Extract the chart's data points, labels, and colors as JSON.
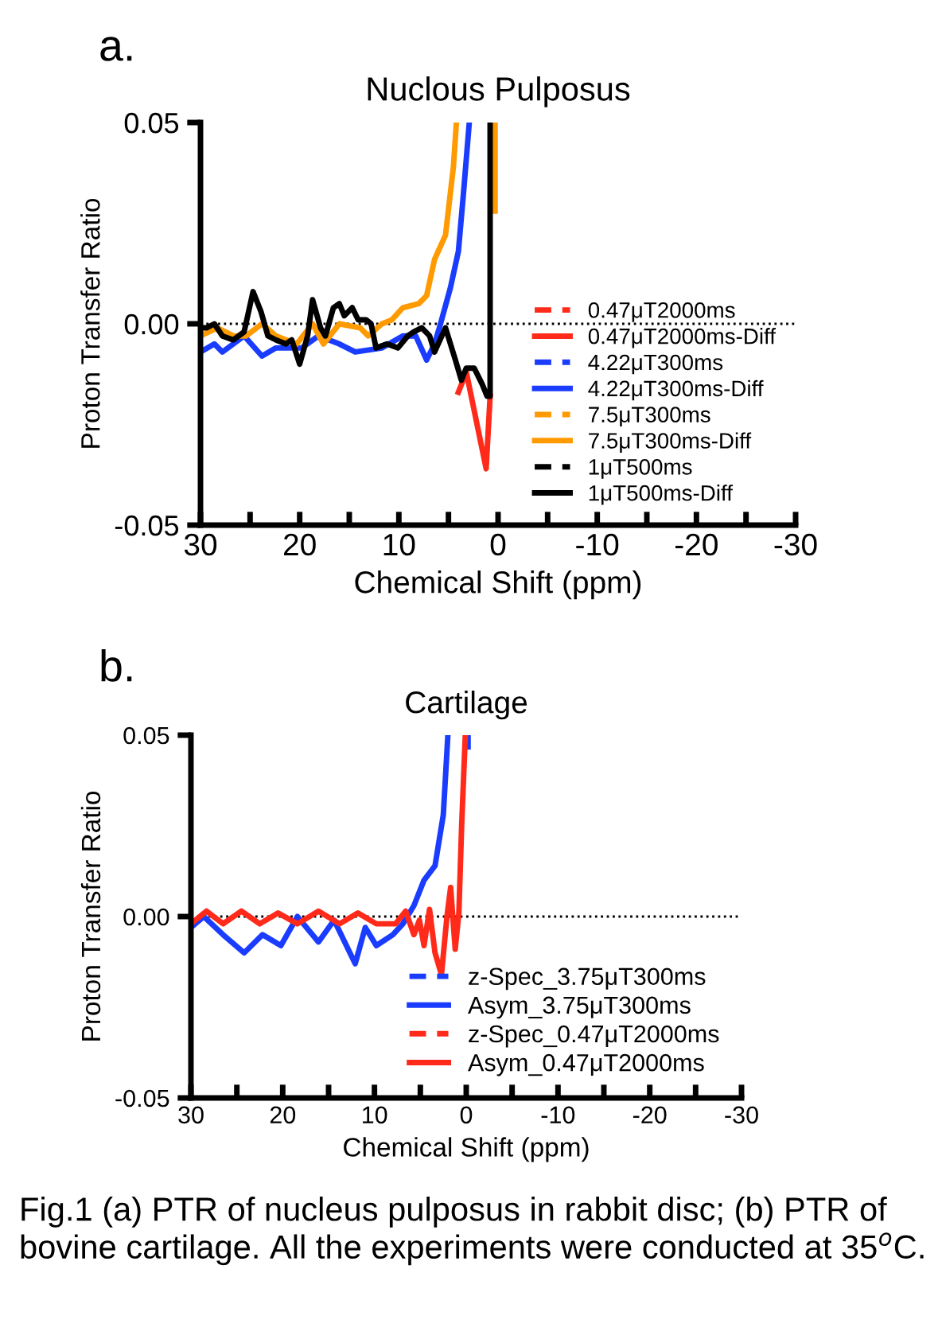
{
  "chart_data": [
    {
      "type": "line",
      "title": "Nuclous Pulposus",
      "xlabel": "Chemical Shift (ppm)",
      "ylabel": "Proton Transfer Ratio",
      "annotations": [
        "a."
      ],
      "xlim": [
        30,
        -30
      ],
      "xticks": [
        30,
        20,
        10,
        0,
        -10,
        -20,
        -30
      ],
      "ylim": [
        -0.05,
        0.05
      ],
      "yticks": [
        {
          "value": 0.05,
          "label": "0.05"
        },
        {
          "value": 0,
          "label": "0.00"
        },
        {
          "value": -0.05,
          "label": "-0.05"
        }
      ],
      "grid": false,
      "legend": "lower right",
      "marker": "none",
      "ref_lines": [
        {
          "axis": "y",
          "value": 0,
          "line_style": "dotted",
          "color": "#000000"
        }
      ],
      "series": [
        {
          "name": "0.47μT2000ms",
          "color": "#ff2a1a",
          "line_style": "dashed"
        },
        {
          "name": "0.47μT2000ms-Diff",
          "color": "#ff2a1a",
          "line_style": "solid",
          "x": [
            4.0,
            3.2,
            1.2,
            0.8
          ],
          "values": [
            -0.017,
            -0.012,
            -0.036,
            -0.018
          ]
        },
        {
          "name": "4.22μT300ms",
          "color": "#1a3cff",
          "line_style": "dashed"
        },
        {
          "name": "4.22μT300ms-Diff",
          "color": "#1a3cff",
          "line_style": "solid",
          "x": [
            30,
            28.6,
            27.8,
            25.6,
            23.8,
            22.4,
            19.8,
            18.1,
            16.0,
            14.4,
            11.7,
            9.6,
            8.3,
            7.2,
            6.4,
            5.8,
            4.8,
            4.0,
            3.5,
            2.9
          ],
          "values": [
            -0.007,
            -0.005,
            -0.007,
            -0.003,
            -0.008,
            -0.006,
            -0.006,
            -0.003,
            -0.005,
            -0.007,
            -0.006,
            -0.003,
            -0.003,
            -0.009,
            -0.005,
            0,
            0.009,
            0.018,
            0.032,
            0.05
          ]
        },
        {
          "name": "7.5μT300ms",
          "color": "#ff9a00",
          "line_style": "dashed"
        },
        {
          "name": "7.5μT300ms-Diff",
          "color": "#ff9a00",
          "line_style": "solid",
          "x": [
            30,
            28.3,
            26.7,
            25.4,
            23.8,
            22.4,
            20.3,
            18.7,
            17.6,
            16.0,
            13.9,
            13.1,
            11.7,
            10.7,
            9.6,
            8.0,
            7.2,
            6.4,
            5.3,
            4.5,
            4.2,
            2.0,
            0.3,
            0.3
          ],
          "values": [
            -0.003,
            -0.001,
            -0.003,
            -0.003,
            0,
            -0.003,
            -0.005,
            0,
            -0.005,
            0,
            -0.001,
            -0.003,
            0,
            0.001,
            0.004,
            0.005,
            0.007,
            0.016,
            0.022,
            0.039,
            0.05,
            null,
            0.05,
            0.028
          ]
        },
        {
          "name": "1μT500ms",
          "color": "#000000",
          "line_style": "dashed"
        },
        {
          "name": "1μT500ms-Diff",
          "color": "#000000",
          "line_style": "solid",
          "x": [
            30,
            29.4,
            28.6,
            27.8,
            26.7,
            25.6,
            24.7,
            23.9,
            23.2,
            22.4,
            21.4,
            20.8,
            20.0,
            19.2,
            18.7,
            17.9,
            17.4,
            16.6,
            16.0,
            15.5,
            14.7,
            14.1,
            13.3,
            12.8,
            12.3,
            11.2,
            10.1,
            9.1,
            8.5,
            7.7,
            6.9,
            6.4,
            5.3,
            4.3,
            3.7,
            3.2,
            2.4,
            1.6,
            1.1,
            0.8,
            0.8
          ],
          "values": [
            -0.001,
            -0.001,
            0,
            -0.003,
            -0.004,
            -0.002,
            0.008,
            0.003,
            -0.003,
            -0.004,
            -0.005,
            -0.004,
            -0.01,
            -0.003,
            0.006,
            -0.001,
            -0.003,
            0.004,
            0.005,
            0.002,
            0.004,
            0.001,
            0.001,
            0,
            -0.006,
            -0.005,
            -0.006,
            -0.003,
            -0.002,
            -0.001,
            -0.003,
            -0.007,
            -0.001,
            -0.009,
            -0.014,
            -0.011,
            -0.011,
            -0.015,
            -0.018,
            -0.018,
            0.05
          ]
        }
      ]
    },
    {
      "type": "line",
      "title": "Cartilage",
      "xlabel": "Chemical Shift (ppm)",
      "ylabel": "Proton Transfer Ratio",
      "annotations": [
        "b.",
        "Fig.1 (a) PTR of nucleus pulposus in rabbit disc; (b) PTR of  bovine cartilage. All the experiments were conducted at 35$^{o}$C."
      ],
      "xlim": [
        30,
        -30
      ],
      "xticks": [
        30,
        20,
        10,
        0,
        -10,
        -20,
        -30
      ],
      "ylim": [
        -0.05,
        0.05
      ],
      "yticks": [
        {
          "value": 0.05,
          "label": "0.05"
        },
        {
          "value": 0,
          "label": "0.00"
        },
        {
          "value": -0.05,
          "label": "-0.05"
        }
      ],
      "grid": false,
      "legend": "lower right",
      "marker": "none",
      "ref_lines": [
        {
          "axis": "y",
          "value": 0,
          "line_style": "dotted",
          "color": "#000000"
        }
      ],
      "series": [
        {
          "name": "z-Spec_3.75μT300ms",
          "color": "#1a3cff",
          "line_style": "dashed",
          "x": [
            -0.2,
            -0.2
          ],
          "values": [
            0.05,
            0.046
          ]
        },
        {
          "name": "Asym_3.75μT300ms",
          "color": "#1a3cff",
          "line_style": "solid",
          "x": [
            30,
            28.6,
            26.5,
            24.2,
            22.2,
            20.2,
            18.4,
            16.1,
            14.4,
            12.1,
            11.0,
            9.8,
            8.0,
            6.9,
            5.7,
            4.6,
            3.4,
            2.5,
            2.0
          ],
          "values": [
            -0.003,
            0,
            -0.005,
            -0.01,
            -0.005,
            -0.008,
            0,
            -0.007,
            -0.001,
            -0.013,
            -0.003,
            -0.008,
            -0.005,
            -0.002,
            0.003,
            0.01,
            0.014,
            0.028,
            0.05
          ]
        },
        {
          "name": "z-Spec_0.47μT2000ms",
          "color": "#ff2a1a",
          "line_style": "dashed"
        },
        {
          "name": "Asym_0.47μT2000ms",
          "color": "#ff2a1a",
          "line_style": "solid",
          "x": [
            30,
            28.3,
            26.5,
            24.5,
            22.5,
            20.5,
            18.4,
            16.1,
            13.8,
            11.8,
            9.8,
            7.7,
            6.6,
            5.7,
            5.1,
            4.6,
            4.0,
            3.4,
            2.7,
            2.1,
            1.7,
            1.2,
            0.8,
            0.5,
            0.1
          ],
          "values": [
            -0.002,
            0.0015,
            -0.002,
            0.0015,
            -0.002,
            0.001,
            -0.002,
            0.0015,
            -0.002,
            0.001,
            -0.002,
            -0.002,
            0.0015,
            -0.005,
            -0.001,
            -0.008,
            0.002,
            -0.01,
            -0.016,
            0,
            0.008,
            -0.009,
            0.001,
            0.025,
            0.05
          ]
        }
      ]
    }
  ]
}
